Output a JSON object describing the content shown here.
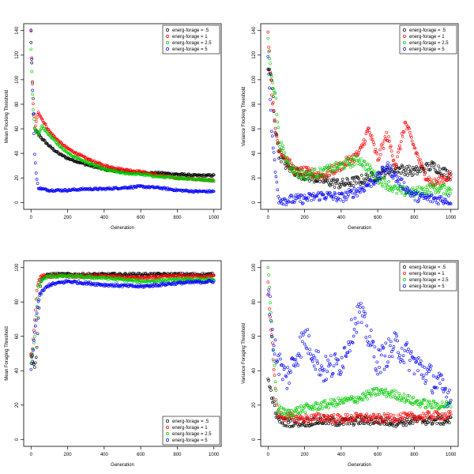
{
  "chart_data": [
    {
      "type": "scatter",
      "xlabel": "Generation",
      "ylabel": "Mean Flocking Threshold",
      "xlim": [
        0,
        1000
      ],
      "ylim": [
        0,
        140
      ],
      "xticks": [
        0,
        200,
        400,
        600,
        800,
        1000
      ],
      "yticks": [
        0,
        20,
        40,
        60,
        80,
        100,
        120,
        140
      ],
      "legend_position": "top-right",
      "series": [
        {
          "name": "energ-forage = .5",
          "color": "#000000",
          "x": [
            0,
            10,
            20,
            40,
            60,
            100,
            150,
            200,
            300,
            400,
            500,
            600,
            700,
            800,
            900,
            1000
          ],
          "y": [
            130,
            90,
            60,
            56,
            52,
            46,
            40,
            36,
            31,
            27,
            25,
            24,
            24,
            23,
            22,
            22
          ]
        },
        {
          "name": "energ-forage = 1",
          "color": "#ff0000",
          "x": [
            0,
            10,
            20,
            40,
            60,
            100,
            150,
            200,
            300,
            400,
            500,
            600,
            700,
            800,
            900,
            1000
          ],
          "y": [
            140,
            85,
            60,
            74,
            68,
            58,
            50,
            44,
            36,
            30,
            27,
            25,
            22,
            20,
            19,
            18
          ]
        },
        {
          "name": "energ-forage = 2.5",
          "color": "#00cc00",
          "x": [
            0,
            10,
            20,
            40,
            60,
            100,
            150,
            200,
            300,
            400,
            500,
            600,
            700,
            800,
            900,
            1000
          ],
          "y": [
            125,
            80,
            60,
            55,
            62,
            55,
            47,
            40,
            33,
            27,
            24,
            23,
            21,
            20,
            19,
            18
          ]
        },
        {
          "name": "energ-forage = 5",
          "color": "#0000ff",
          "x": [
            0,
            10,
            20,
            30,
            40,
            60,
            100,
            200,
            300,
            400,
            500,
            600,
            700,
            800,
            900,
            1000
          ],
          "y": [
            140,
            80,
            40,
            20,
            12,
            11,
            10,
            10,
            11,
            11,
            12,
            13,
            12,
            10,
            9,
            9
          ]
        }
      ]
    },
    {
      "type": "scatter",
      "xlabel": "Generation",
      "ylabel": "Variance Flocking Threshold",
      "xlim": [
        0,
        1000
      ],
      "ylim": [
        0,
        140
      ],
      "xticks": [
        0,
        200,
        400,
        600,
        800,
        1000
      ],
      "yticks": [
        0,
        20,
        40,
        60,
        80,
        100,
        120,
        140
      ],
      "legend_position": "top-right",
      "series": [
        {
          "name": "energ-forage = .5",
          "color": "#000000",
          "x": [
            0,
            20,
            40,
            60,
            100,
            150,
            200,
            300,
            400,
            500,
            600,
            700,
            800,
            900,
            1000
          ],
          "y": [
            110,
            100,
            60,
            40,
            30,
            25,
            22,
            18,
            15,
            18,
            22,
            28,
            25,
            30,
            22
          ]
        },
        {
          "name": "energ-forage = 1",
          "color": "#ff0000",
          "x": [
            0,
            20,
            40,
            60,
            100,
            150,
            200,
            300,
            400,
            500,
            550,
            600,
            650,
            700,
            750,
            800,
            850,
            900,
            1000
          ],
          "y": [
            140,
            90,
            60,
            45,
            35,
            25,
            25,
            22,
            30,
            40,
            60,
            35,
            55,
            30,
            65,
            45,
            25,
            15,
            22
          ]
        },
        {
          "name": "energ-forage = 2.5",
          "color": "#00cc00",
          "x": [
            0,
            20,
            40,
            60,
            100,
            150,
            200,
            300,
            400,
            500,
            600,
            700,
            800,
            900,
            1000
          ],
          "y": [
            130,
            100,
            90,
            50,
            35,
            25,
            22,
            25,
            30,
            35,
            20,
            10,
            8,
            12,
            10
          ]
        },
        {
          "name": "energ-forage = 5",
          "color": "#0000ff",
          "x": [
            0,
            20,
            40,
            60,
            100,
            200,
            300,
            400,
            500,
            600,
            650,
            700,
            800,
            900,
            1000
          ],
          "y": [
            120,
            60,
            25,
            3,
            2,
            3,
            6,
            4,
            10,
            20,
            30,
            20,
            5,
            3,
            2
          ]
        }
      ]
    },
    {
      "type": "scatter",
      "xlabel": "Generation",
      "ylabel": "Mean Foraging Threshold",
      "xlim": [
        0,
        1000
      ],
      "ylim": [
        0,
        100
      ],
      "xticks": [
        0,
        200,
        400,
        600,
        800,
        1000
      ],
      "yticks": [
        0,
        20,
        40,
        60,
        80,
        100
      ],
      "legend_position": "bottom-right",
      "series": [
        {
          "name": "energ-forage = .5",
          "color": "#000000",
          "x": [
            0,
            10,
            20,
            30,
            40,
            50,
            60,
            80,
            100,
            200,
            400,
            600,
            800,
            1000
          ],
          "y": [
            50,
            45,
            42,
            50,
            70,
            88,
            94,
            95,
            96,
            96,
            96,
            96,
            96,
            96
          ]
        },
        {
          "name": "energ-forage = 1",
          "color": "#ff0000",
          "x": [
            0,
            10,
            20,
            30,
            40,
            50,
            60,
            80,
            100,
            200,
            400,
            600,
            800,
            1000
          ],
          "y": [
            48,
            55,
            70,
            85,
            92,
            94,
            95,
            95,
            95,
            95,
            95,
            94,
            95,
            95
          ]
        },
        {
          "name": "energ-forage = 2.5",
          "color": "#00cc00",
          "x": [
            0,
            10,
            20,
            30,
            40,
            50,
            60,
            80,
            100,
            200,
            400,
            600,
            800,
            1000
          ],
          "y": [
            45,
            50,
            60,
            75,
            88,
            92,
            93,
            94,
            95,
            95,
            94,
            92,
            93,
            93
          ]
        },
        {
          "name": "energ-forage = 5",
          "color": "#0000ff",
          "x": [
            0,
            10,
            20,
            30,
            40,
            50,
            60,
            80,
            100,
            200,
            400,
            600,
            800,
            1000
          ],
          "y": [
            40,
            50,
            62,
            72,
            80,
            84,
            86,
            88,
            90,
            92,
            90,
            89,
            91,
            92
          ]
        }
      ]
    },
    {
      "type": "scatter",
      "xlabel": "Generation",
      "ylabel": "Variance Foraging Threshold",
      "xlim": [
        0,
        1000
      ],
      "ylim": [
        0,
        100
      ],
      "xticks": [
        0,
        200,
        400,
        600,
        800,
        1000
      ],
      "yticks": [
        0,
        20,
        40,
        60,
        80,
        100
      ],
      "legend_position": "top-right",
      "series": [
        {
          "name": "energ-forage = .5",
          "color": "#000000",
          "x": [
            0,
            50,
            100,
            200,
            300,
            400,
            500,
            600,
            700,
            800,
            900,
            1000
          ],
          "y": [
            35,
            12,
            10,
            10,
            11,
            10,
            11,
            11,
            10,
            11,
            11,
            11
          ]
        },
        {
          "name": "energ-forage = 1",
          "color": "#ff0000",
          "x": [
            0,
            50,
            100,
            200,
            300,
            400,
            500,
            600,
            700,
            800,
            900,
            1000
          ],
          "y": [
            90,
            15,
            13,
            12,
            13,
            12,
            13,
            12,
            13,
            13,
            14,
            14
          ]
        },
        {
          "name": "energ-forage = 2.5",
          "color": "#00cc00",
          "x": [
            0,
            50,
            100,
            200,
            300,
            400,
            500,
            600,
            700,
            800,
            900,
            1000
          ],
          "y": [
            100,
            18,
            15,
            18,
            20,
            22,
            24,
            28,
            26,
            22,
            20,
            20
          ]
        },
        {
          "name": "energ-forage = 5",
          "color": "#0000ff",
          "x": [
            0,
            30,
            60,
            100,
            200,
            300,
            400,
            500,
            600,
            700,
            800,
            900,
            1000
          ],
          "y": [
            90,
            55,
            45,
            35,
            60,
            40,
            45,
            75,
            45,
            55,
            45,
            35,
            25
          ]
        }
      ]
    }
  ]
}
